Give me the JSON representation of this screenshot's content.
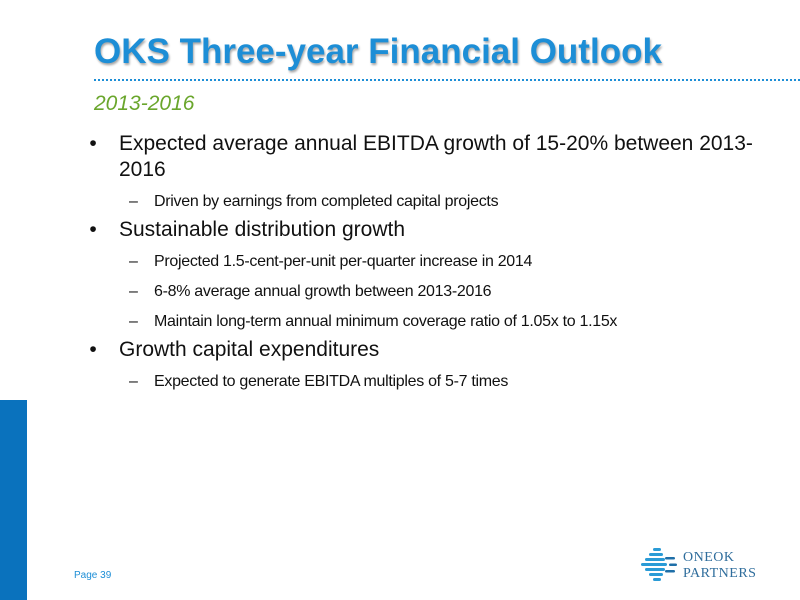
{
  "slide": {
    "title": "OKS Three-year Financial Outlook",
    "subtitle": "2013-2016",
    "bullets": [
      {
        "text": "Expected average annual EBITDA growth of 15-20% between 2013-2016",
        "subs": [
          "Driven by earnings from completed capital projects"
        ]
      },
      {
        "text": "Sustainable distribution growth",
        "subs": [
          "Projected 1.5-cent-per-unit per-quarter increase in 2014",
          "6-8% average annual growth between 2013-2016",
          "Maintain long-term annual minimum coverage ratio of 1.05x to 1.15x"
        ]
      },
      {
        "text": "Growth capital expenditures",
        "subs": [
          "Expected to generate EBITDA multiples of 5-7 times"
        ]
      }
    ],
    "bullet_glyph": "•",
    "sub_glyph": "–",
    "page_number": "Page 39"
  },
  "logo": {
    "line1": "ONEOK",
    "line2": "PARTNERS",
    "icon": "oneok-logo-icon"
  },
  "colors": {
    "title": "#1d8ed6",
    "subtitle": "#6aa62c",
    "sidebar": "#0a72bd",
    "text": "#111111"
  }
}
